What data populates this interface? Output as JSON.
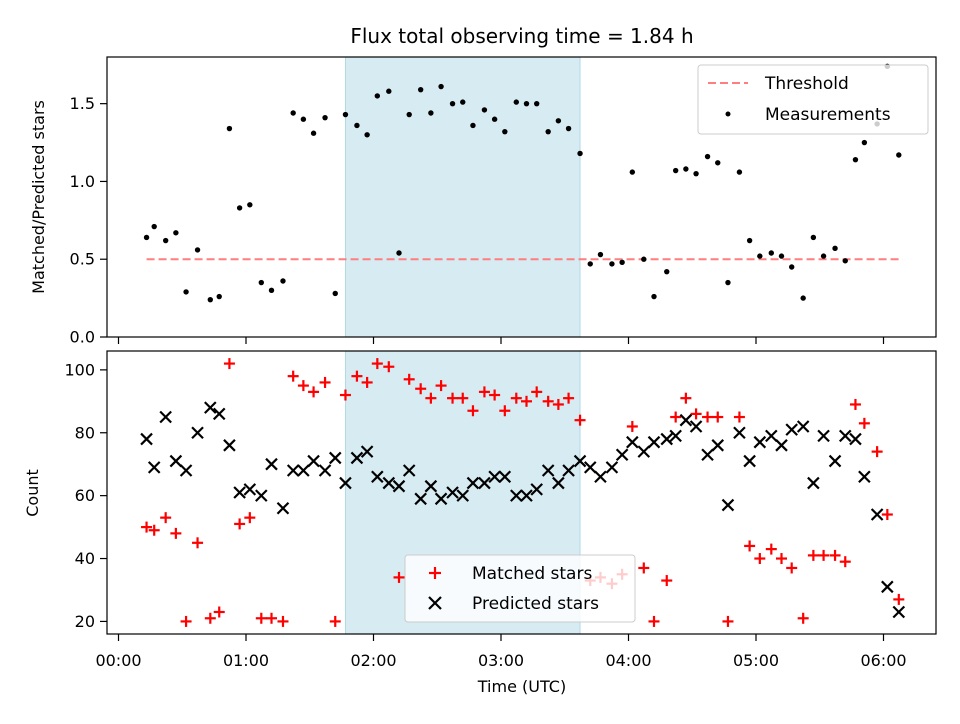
{
  "chart_data": {
    "title": "Flux total observing time = 1.84 h",
    "x_unit": "hours since 00:00 UTC",
    "xlabel": "Time (UTC)",
    "xticks": [
      "00:00",
      "01:00",
      "02:00",
      "03:00",
      "04:00",
      "05:00",
      "06:00"
    ],
    "shaded_interval": [
      1.78,
      3.62
    ],
    "colors": {
      "band": "#add8e6",
      "threshold": "#ff7f7f",
      "matched": "#ff0000",
      "predicted": "#000000",
      "measurement": "#000000"
    },
    "top": {
      "type": "scatter",
      "ylabel": "Matched/Predicted stars",
      "ylim": [
        0,
        1.8
      ],
      "yticks": [
        "0.0",
        "0.5",
        "1.0",
        "1.5"
      ],
      "legend_position": "top-right",
      "threshold": {
        "name": "Threshold",
        "value": 0.5,
        "x_range": [
          0.22,
          6.15
        ]
      },
      "measurements": {
        "name": "Measurements",
        "x": [
          0.22,
          0.28,
          0.37,
          0.45,
          0.53,
          0.62,
          0.72,
          0.79,
          0.87,
          0.95,
          1.03,
          1.12,
          1.2,
          1.29,
          1.37,
          1.45,
          1.53,
          1.62,
          1.7,
          1.78,
          1.87,
          1.95,
          2.03,
          2.12,
          2.2,
          2.28,
          2.37,
          2.45,
          2.53,
          2.62,
          2.7,
          2.78,
          2.87,
          2.95,
          3.03,
          3.12,
          3.2,
          3.28,
          3.37,
          3.45,
          3.53,
          3.62,
          3.7,
          3.78,
          3.87,
          3.95,
          4.03,
          4.12,
          4.2,
          4.3,
          4.37,
          4.45,
          4.53,
          4.62,
          4.7,
          4.78,
          4.87,
          4.95,
          5.03,
          5.12,
          5.2,
          5.28,
          5.37,
          5.45,
          5.53,
          5.62,
          5.7,
          5.78,
          5.85,
          5.95,
          6.03,
          6.12
        ],
        "y": [
          0.64,
          0.71,
          0.62,
          0.67,
          0.29,
          0.56,
          0.24,
          0.26,
          1.34,
          0.83,
          0.85,
          0.35,
          0.3,
          0.36,
          1.44,
          1.4,
          1.31,
          1.41,
          0.28,
          1.43,
          1.36,
          1.3,
          1.55,
          1.58,
          0.54,
          1.43,
          1.59,
          1.44,
          1.61,
          1.5,
          1.51,
          1.36,
          1.46,
          1.4,
          1.32,
          1.51,
          1.5,
          1.5,
          1.32,
          1.39,
          1.34,
          1.18,
          0.47,
          0.53,
          0.47,
          0.48,
          1.06,
          0.5,
          0.26,
          0.42,
          1.07,
          1.08,
          1.05,
          1.16,
          1.12,
          0.35,
          1.06,
          0.62,
          0.52,
          0.54,
          0.52,
          0.45,
          0.25,
          0.64,
          0.52,
          0.57,
          0.49,
          1.14,
          1.25,
          1.37,
          1.74,
          1.17
        ]
      }
    },
    "bottom": {
      "type": "scatter",
      "ylabel": "Count",
      "ylim": [
        16,
        106
      ],
      "yticks": [
        "20",
        "40",
        "60",
        "80",
        "100"
      ],
      "legend_position": "lower-center",
      "series": [
        {
          "name": "Matched stars",
          "marker": "plus",
          "x": [
            0.22,
            0.28,
            0.37,
            0.45,
            0.53,
            0.62,
            0.72,
            0.79,
            0.87,
            0.95,
            1.03,
            1.12,
            1.2,
            1.29,
            1.37,
            1.45,
            1.53,
            1.62,
            1.7,
            1.78,
            1.87,
            1.95,
            2.03,
            2.12,
            2.2,
            2.28,
            2.37,
            2.45,
            2.53,
            2.62,
            2.7,
            2.78,
            2.87,
            2.95,
            3.03,
            3.12,
            3.2,
            3.28,
            3.37,
            3.45,
            3.53,
            3.62,
            3.7,
            3.78,
            3.87,
            3.95,
            4.03,
            4.12,
            4.2,
            4.3,
            4.37,
            4.45,
            4.53,
            4.62,
            4.7,
            4.78,
            4.87,
            4.95,
            5.03,
            5.12,
            5.2,
            5.28,
            5.37,
            5.45,
            5.53,
            5.62,
            5.7,
            5.78,
            5.85,
            5.95,
            6.03,
            6.12
          ],
          "y": [
            50,
            49,
            53,
            48,
            20,
            45,
            21,
            23,
            102,
            51,
            53,
            21,
            21,
            20,
            98,
            95,
            93,
            96,
            20,
            92,
            98,
            96,
            102,
            101,
            34,
            97,
            94,
            91,
            95,
            91,
            91,
            87,
            93,
            92,
            87,
            91,
            90,
            93,
            90,
            89,
            91,
            84,
            33,
            34,
            32,
            35,
            82,
            37,
            20,
            33,
            85,
            91,
            86,
            85,
            85,
            20,
            85,
            44,
            40,
            43,
            40,
            37,
            21,
            41,
            41,
            41,
            39,
            89,
            83,
            74,
            54,
            27
          ]
        },
        {
          "name": "Predicted stars",
          "marker": "x",
          "x": [
            0.22,
            0.28,
            0.37,
            0.45,
            0.53,
            0.62,
            0.72,
            0.79,
            0.87,
            0.95,
            1.03,
            1.12,
            1.2,
            1.29,
            1.37,
            1.45,
            1.53,
            1.62,
            1.7,
            1.78,
            1.87,
            1.95,
            2.03,
            2.12,
            2.2,
            2.28,
            2.37,
            2.45,
            2.53,
            2.62,
            2.7,
            2.78,
            2.87,
            2.95,
            3.03,
            3.12,
            3.2,
            3.28,
            3.37,
            3.45,
            3.53,
            3.62,
            3.7,
            3.78,
            3.87,
            3.95,
            4.03,
            4.12,
            4.2,
            4.3,
            4.37,
            4.45,
            4.53,
            4.62,
            4.7,
            4.78,
            4.87,
            4.95,
            5.03,
            5.12,
            5.2,
            5.28,
            5.37,
            5.45,
            5.53,
            5.62,
            5.7,
            5.78,
            5.85,
            5.95,
            6.03,
            6.12
          ],
          "y": [
            78,
            69,
            85,
            71,
            68,
            80,
            88,
            86,
            76,
            61,
            62,
            60,
            70,
            56,
            68,
            68,
            71,
            68,
            72,
            64,
            72,
            74,
            66,
            64,
            63,
            68,
            59,
            63,
            59,
            61,
            60,
            64,
            64,
            66,
            66,
            60,
            60,
            62,
            68,
            64,
            68,
            71,
            69,
            66,
            69,
            73,
            77,
            74,
            77,
            78,
            79,
            84,
            82,
            73,
            76,
            57,
            80,
            71,
            77,
            79,
            76,
            81,
            82,
            64,
            79,
            71,
            79,
            78,
            66,
            54,
            31,
            23
          ]
        }
      ]
    }
  }
}
